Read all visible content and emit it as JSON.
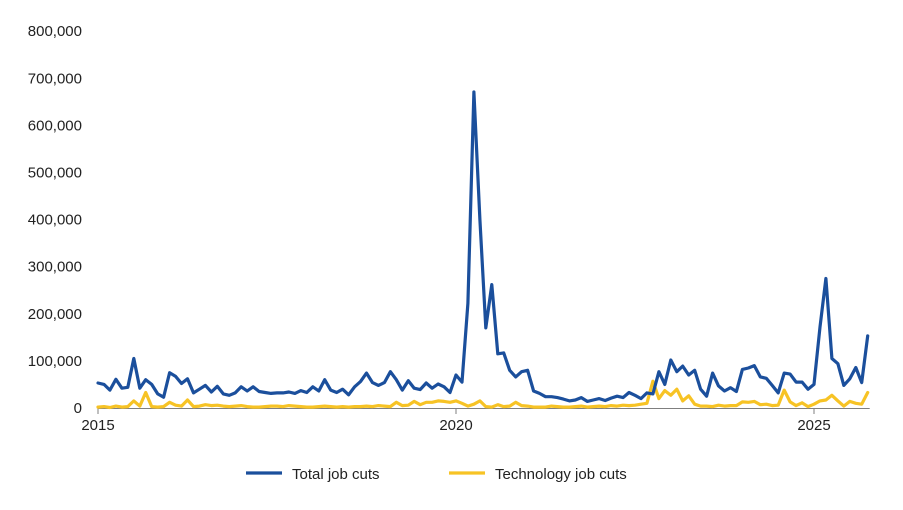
{
  "chart_data": {
    "type": "line",
    "title": "",
    "xlabel": "",
    "ylabel": "",
    "x_start": "2015-01",
    "x_frequency": "monthly",
    "x_ticks": [
      "2015",
      "2020",
      "2025"
    ],
    "y_ticks": [
      "0",
      "100,000",
      "200,000",
      "300,000",
      "400,000",
      "500,000",
      "600,000",
      "700,000",
      "800,000"
    ],
    "ylim": [
      0,
      800000
    ],
    "grid": false,
    "legend_position": "bottom",
    "series": [
      {
        "name": "Total job cuts",
        "color": "#1b4f9c",
        "values": [
          53000,
          50000,
          38000,
          61000,
          42000,
          44000,
          105000,
          42000,
          60000,
          50000,
          30000,
          23000,
          75000,
          67000,
          52000,
          62000,
          32000,
          40000,
          48000,
          34000,
          46000,
          30000,
          27000,
          32000,
          45000,
          36000,
          45000,
          35000,
          33000,
          31000,
          32000,
          32000,
          34000,
          31000,
          37000,
          33000,
          45000,
          36000,
          60000,
          38000,
          33000,
          40000,
          28000,
          45000,
          56000,
          74000,
          54000,
          48000,
          54000,
          77000,
          60000,
          38000,
          58000,
          42000,
          39000,
          53000,
          42000,
          51000,
          45000,
          33000,
          70000,
          55000,
          222000,
          671000,
          400000,
          170000,
          262000,
          115000,
          117000,
          80000,
          66000,
          77000,
          80000,
          36000,
          31000,
          24000,
          24000,
          22000,
          19000,
          15000,
          17000,
          22000,
          14000,
          17000,
          20000,
          16000,
          21000,
          25000,
          22000,
          33000,
          27000,
          20000,
          32000,
          30000,
          77000,
          50000,
          102000,
          77000,
          89000,
          70000,
          80000,
          40000,
          25000,
          74000,
          47000,
          36000,
          43000,
          35000,
          82000,
          85000,
          90000,
          66000,
          63000,
          48000,
          32000,
          74000,
          72000,
          55000,
          55000,
          40000,
          50000,
          172000,
          275000,
          105000,
          94000,
          48000,
          62000,
          86000,
          54000,
          153000
        ]
      },
      {
        "name": "Technology job cuts",
        "color": "#f7c325",
        "values": [
          2000,
          3000,
          1000,
          4000,
          2000,
          3000,
          15000,
          4000,
          33000,
          3000,
          2000,
          3000,
          12000,
          6000,
          4000,
          17000,
          3000,
          4000,
          7000,
          5000,
          6000,
          4000,
          3000,
          4000,
          5000,
          3000,
          2000,
          2000,
          3000,
          4000,
          4000,
          3000,
          5000,
          4000,
          3000,
          2000,
          2000,
          3000,
          4000,
          3000,
          2000,
          3000,
          2000,
          3000,
          3000,
          4000,
          3000,
          5000,
          4000,
          3000,
          12000,
          5000,
          6000,
          14000,
          7000,
          12000,
          12000,
          15000,
          14000,
          12000,
          15000,
          10000,
          4000,
          8000,
          15000,
          3000,
          2000,
          7000,
          3000,
          4000,
          12000,
          5000,
          4000,
          2000,
          2000,
          2000,
          4000,
          3000,
          2000,
          2000,
          3000,
          4000,
          2000,
          3000,
          4000,
          3000,
          5000,
          4000,
          6000,
          5000,
          6000,
          8000,
          10000,
          57000,
          20000,
          37000,
          27000,
          40000,
          15000,
          26000,
          8000,
          4000,
          4000,
          3000,
          6000,
          4000,
          5000,
          5000,
          13000,
          12000,
          14000,
          7000,
          8000,
          5000,
          6000,
          38000,
          13000,
          5000,
          11000,
          3000,
          8000,
          15000,
          17000,
          27000,
          15000,
          4000,
          14000,
          10000,
          8000,
          33000
        ]
      }
    ]
  }
}
